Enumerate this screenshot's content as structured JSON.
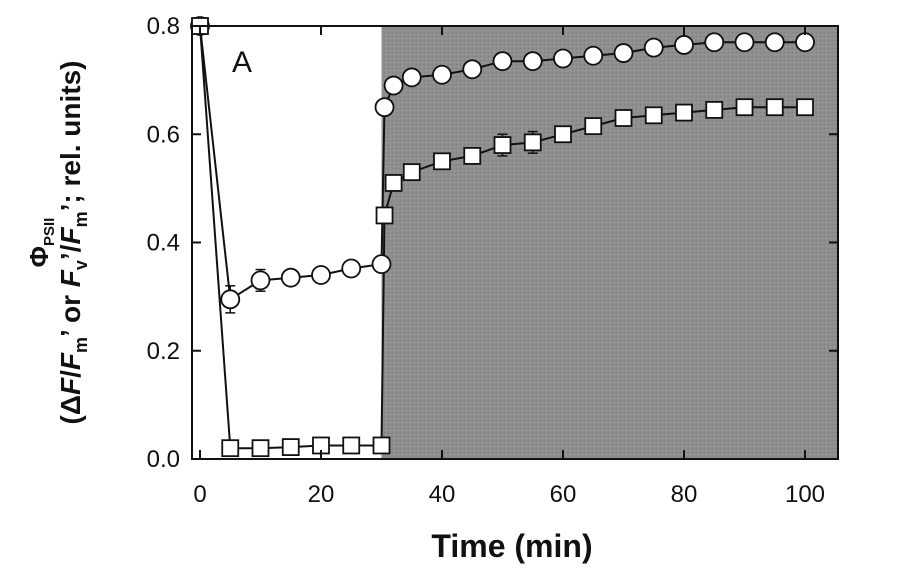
{
  "chart_data": {
    "type": "scatter",
    "panel_label": "A",
    "xlabel": "Time (min)",
    "ylabel": {
      "line1_symbol": "Φ",
      "line1_subscript": "PSII",
      "line2_parts": [
        {
          "text": "(Δ",
          "italic": false
        },
        {
          "text": "F",
          "italic": true
        },
        {
          "text": "/",
          "italic": false
        },
        {
          "text": "F",
          "italic": true
        },
        {
          "text": "m",
          "italic": false,
          "sub": true
        },
        {
          "text": "’ or ",
          "italic": false
        },
        {
          "text": "F",
          "italic": true
        },
        {
          "text": "v",
          "italic": false,
          "sub": true
        },
        {
          "text": "’/",
          "italic": false
        },
        {
          "text": "F",
          "italic": true
        },
        {
          "text": "m",
          "italic": false,
          "sub": true
        },
        {
          "text": "’; rel. units)",
          "italic": false
        }
      ]
    },
    "xlim": [
      0,
      105
    ],
    "ylim": [
      0,
      0.8
    ],
    "xticks": [
      0,
      20,
      40,
      60,
      80,
      100
    ],
    "yticks": [
      0.0,
      0.2,
      0.4,
      0.6,
      0.8
    ],
    "xtick_labels": [
      "0",
      "20",
      "40",
      "60",
      "80",
      "100"
    ],
    "ytick_labels": [
      "0.0",
      "0.2",
      "0.4",
      "0.6",
      "0.8"
    ],
    "shaded_region": {
      "x_start": 30,
      "x_end": 105,
      "color": "#8f8f8f"
    },
    "series": [
      {
        "marker": "circle",
        "points": [
          {
            "x": 0,
            "y": 0.8
          },
          {
            "x": 5,
            "y": 0.295,
            "err": 0.025
          },
          {
            "x": 10,
            "y": 0.33,
            "err": 0.02
          },
          {
            "x": 15,
            "y": 0.335
          },
          {
            "x": 20,
            "y": 0.34
          },
          {
            "x": 25,
            "y": 0.352
          },
          {
            "x": 30,
            "y": 0.36
          },
          {
            "x": 30.5,
            "y": 0.65
          },
          {
            "x": 32,
            "y": 0.69
          },
          {
            "x": 35,
            "y": 0.705
          },
          {
            "x": 40,
            "y": 0.71
          },
          {
            "x": 45,
            "y": 0.72
          },
          {
            "x": 50,
            "y": 0.735
          },
          {
            "x": 55,
            "y": 0.735
          },
          {
            "x": 60,
            "y": 0.74
          },
          {
            "x": 65,
            "y": 0.745
          },
          {
            "x": 70,
            "y": 0.75
          },
          {
            "x": 75,
            "y": 0.76
          },
          {
            "x": 80,
            "y": 0.765
          },
          {
            "x": 85,
            "y": 0.77
          },
          {
            "x": 90,
            "y": 0.77
          },
          {
            "x": 95,
            "y": 0.77
          },
          {
            "x": 100,
            "y": 0.77
          }
        ]
      },
      {
        "marker": "square",
        "points": [
          {
            "x": 0,
            "y": 0.8
          },
          {
            "x": 5,
            "y": 0.02
          },
          {
            "x": 10,
            "y": 0.02
          },
          {
            "x": 15,
            "y": 0.022
          },
          {
            "x": 20,
            "y": 0.025
          },
          {
            "x": 25,
            "y": 0.025
          },
          {
            "x": 30,
            "y": 0.025
          },
          {
            "x": 30.5,
            "y": 0.45
          },
          {
            "x": 32,
            "y": 0.51
          },
          {
            "x": 35,
            "y": 0.53
          },
          {
            "x": 40,
            "y": 0.55
          },
          {
            "x": 45,
            "y": 0.56
          },
          {
            "x": 50,
            "y": 0.58,
            "err": 0.02
          },
          {
            "x": 55,
            "y": 0.585,
            "err": 0.02
          },
          {
            "x": 60,
            "y": 0.6
          },
          {
            "x": 65,
            "y": 0.615
          },
          {
            "x": 70,
            "y": 0.63
          },
          {
            "x": 75,
            "y": 0.635
          },
          {
            "x": 80,
            "y": 0.64
          },
          {
            "x": 85,
            "y": 0.645
          },
          {
            "x": 90,
            "y": 0.65
          },
          {
            "x": 95,
            "y": 0.65
          },
          {
            "x": 100,
            "y": 0.65
          }
        ]
      }
    ]
  }
}
